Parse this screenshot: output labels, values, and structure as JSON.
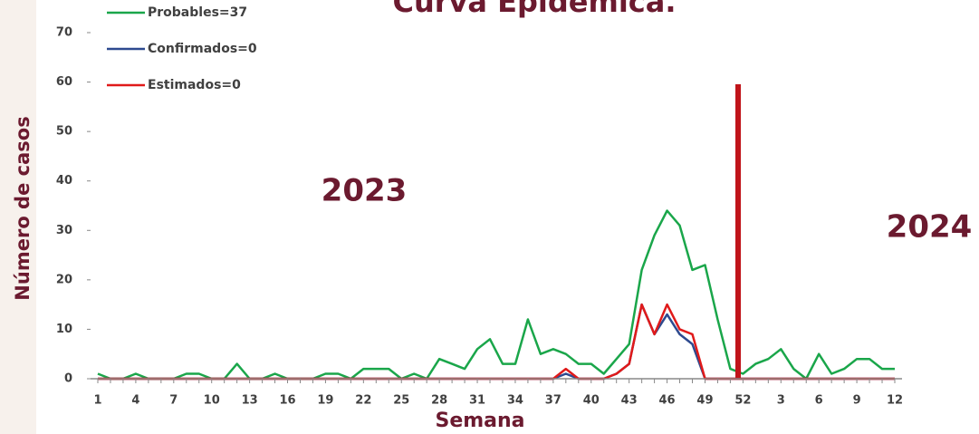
{
  "chart_data": {
    "type": "line",
    "title": "Curva Epidémica.",
    "y_label": "Número de casos",
    "x_label": "Semana",
    "annotations": [
      "2023",
      "2024"
    ],
    "categories": [
      "1",
      null,
      null,
      "4",
      null,
      null,
      "7",
      null,
      null,
      "10",
      null,
      null,
      "13",
      null,
      null,
      "16",
      null,
      null,
      "19",
      null,
      null,
      "22",
      null,
      null,
      "25",
      null,
      null,
      "28",
      null,
      null,
      "31",
      null,
      null,
      "34",
      null,
      null,
      "37",
      null,
      null,
      "40",
      null,
      null,
      "43",
      null,
      null,
      "46",
      null,
      null,
      "49",
      null,
      null,
      "52",
      null,
      null,
      "3",
      null,
      null,
      "6",
      null,
      null,
      "9",
      null,
      null,
      "12"
    ],
    "series": [
      {
        "name": "Probables=37",
        "color": "#1aa64a",
        "values": [
          1,
          0,
          0,
          1,
          0,
          0,
          0,
          1,
          1,
          0,
          0,
          3,
          0,
          0,
          1,
          0,
          0,
          0,
          1,
          1,
          0,
          2,
          2,
          2,
          0,
          1,
          0,
          4,
          3,
          2,
          6,
          8,
          3,
          3,
          12,
          5,
          6,
          5,
          3,
          3,
          1,
          4,
          7,
          22,
          29,
          34,
          31,
          22,
          23,
          12,
          2,
          1,
          3,
          4,
          6,
          2,
          0,
          5,
          1,
          2,
          4,
          4,
          2,
          2
        ]
      },
      {
        "name": "Confirmados=0",
        "color": "#2e4a8f",
        "values": [
          0,
          0,
          0,
          0,
          0,
          0,
          0,
          0,
          0,
          0,
          0,
          0,
          0,
          0,
          0,
          0,
          0,
          0,
          0,
          0,
          0,
          0,
          0,
          0,
          0,
          0,
          0,
          0,
          0,
          0,
          0,
          0,
          0,
          0,
          0,
          0,
          0,
          1,
          0,
          0,
          0,
          1,
          3,
          15,
          9,
          13,
          9,
          7,
          0,
          0,
          0,
          0,
          0,
          0,
          0,
          0,
          0,
          0,
          0,
          0,
          0,
          0,
          0,
          0
        ]
      },
      {
        "name": "Estimados=0",
        "color": "#e01a1a",
        "values": [
          0,
          0,
          0,
          0,
          0,
          0,
          0,
          0,
          0,
          0,
          0,
          0,
          0,
          0,
          0,
          0,
          0,
          0,
          0,
          0,
          0,
          0,
          0,
          0,
          0,
          0,
          0,
          0,
          0,
          0,
          0,
          0,
          0,
          0,
          0,
          0,
          0,
          2,
          0,
          0,
          0,
          1,
          3,
          15,
          9,
          15,
          10,
          9,
          0,
          0,
          0,
          0,
          0,
          0,
          0,
          0,
          0,
          0,
          0,
          0,
          0,
          0,
          0,
          0
        ]
      }
    ],
    "ylim": [
      0,
      70
    ],
    "yticks": [
      0,
      10,
      20,
      30,
      40,
      50,
      60,
      70
    ],
    "grid": false
  }
}
